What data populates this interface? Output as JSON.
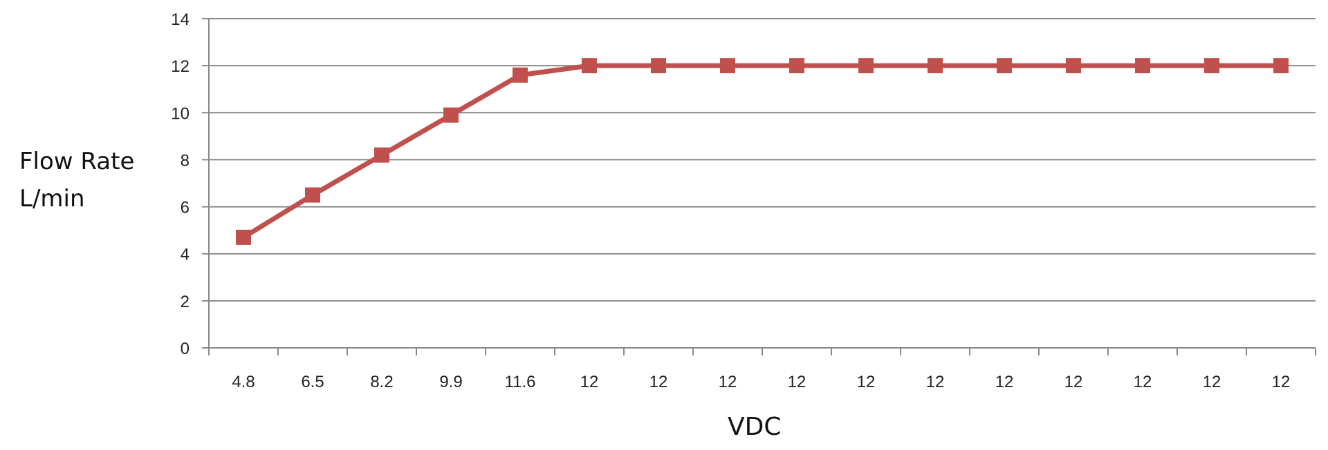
{
  "chart_data": {
    "type": "line",
    "title": "",
    "xlabel": "VDC",
    "ylabel": "Flow Rate L/min",
    "ylabel_lines": [
      "Flow Rate",
      "L/min"
    ],
    "categories": [
      "4.8",
      "6.5",
      "8.2",
      "9.9",
      "11.6",
      "12",
      "12",
      "12",
      "12",
      "12",
      "12",
      "12",
      "12",
      "12",
      "12",
      "12"
    ],
    "series": [
      {
        "name": "Flow Rate",
        "color": "#c0504d",
        "marker": "square",
        "values": [
          4.7,
          6.5,
          8.2,
          9.9,
          11.6,
          12,
          12,
          12,
          12,
          12,
          12,
          12,
          12,
          12,
          12,
          12
        ]
      }
    ],
    "yticks": [
      0,
      2,
      4,
      6,
      8,
      10,
      12,
      14
    ],
    "ylim": [
      0,
      14
    ],
    "grid": {
      "horizontal": true,
      "vertical": false,
      "color": "#888888"
    },
    "legend": null
  }
}
